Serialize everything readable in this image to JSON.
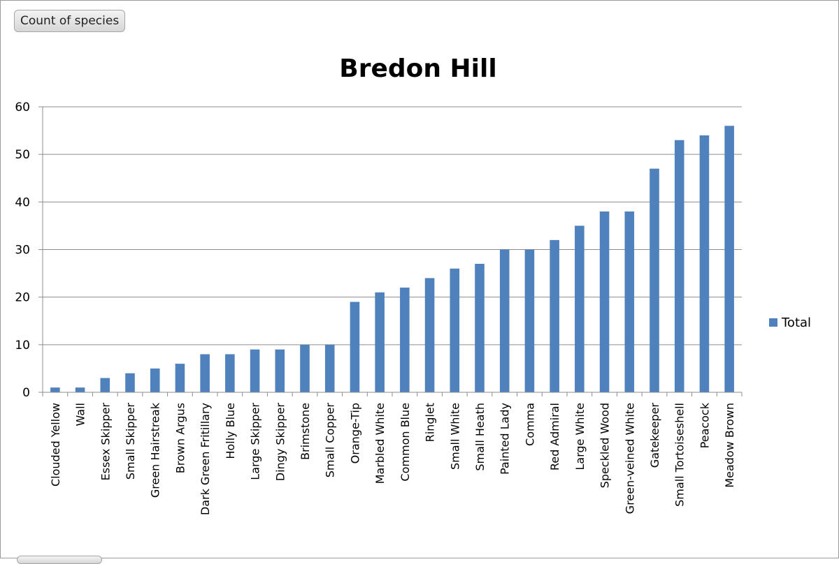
{
  "field_button": {
    "label": "Count of species"
  },
  "colors": {
    "bar": "#4F81BD",
    "grid": "#8c8c8c",
    "axis": "#8c8c8c",
    "text": "#000000"
  },
  "chart_data": {
    "type": "bar",
    "title": "Bredon Hill",
    "xlabel": "",
    "ylabel": "",
    "ylim": [
      0,
      60
    ],
    "yticks": [
      0,
      10,
      20,
      30,
      40,
      50,
      60
    ],
    "grid": true,
    "legend_position": "right",
    "categories": [
      "Clouded Yellow",
      "Wall",
      "Essex Skipper",
      "Small Skipper",
      "Green Hairstreak",
      "Brown Argus",
      "Dark Green Fritillary",
      "Holly Blue",
      "Large Skipper",
      "Dingy Skipper",
      "Brimstone",
      "Small Copper",
      "Orange-Tip",
      "Marbled White",
      "Common Blue",
      "Ringlet",
      "Small White",
      "Small Heath",
      "Painted Lady",
      "Comma",
      "Red Admiral",
      "Large White",
      "Speckled Wood",
      "Green-veined White",
      "Gatekeeper",
      "Small Tortoiseshell",
      "Peacock",
      "Meadow Brown"
    ],
    "series": [
      {
        "name": "Total",
        "values": [
          1,
          1,
          3,
          4,
          5,
          6,
          8,
          8,
          9,
          9,
          10,
          10,
          19,
          21,
          22,
          24,
          26,
          27,
          30,
          30,
          32,
          35,
          38,
          38,
          47,
          53,
          54,
          56
        ]
      }
    ]
  }
}
